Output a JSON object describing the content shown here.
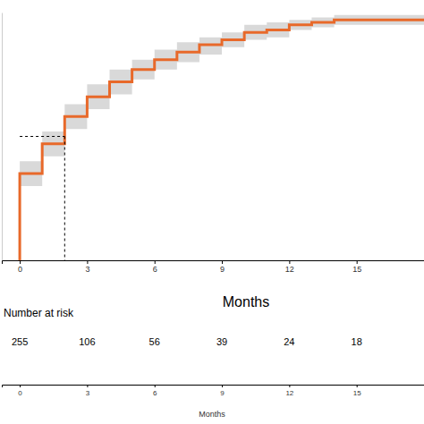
{
  "chart_data": {
    "type": "step",
    "xlabel": "Months",
    "xlim": [
      -0.8,
      18
    ],
    "xticks": [
      0,
      3,
      6,
      9,
      12,
      15
    ],
    "ylim": [
      0,
      1
    ],
    "tick_labels": "x",
    "grid": false,
    "series": [
      {
        "color": "#e8692a",
        "x": [
          0,
          0,
          1,
          2,
          3,
          4,
          5,
          6,
          7,
          8,
          9,
          10,
          11,
          12,
          13,
          14,
          18
        ],
        "values": [
          0,
          0.35,
          0.47,
          0.58,
          0.66,
          0.72,
          0.77,
          0.81,
          0.84,
          0.87,
          0.89,
          0.92,
          0.93,
          0.95,
          0.96,
          0.97,
          0.97
        ],
        "lower": [
          0,
          0.3,
          0.42,
          0.53,
          0.61,
          0.67,
          0.73,
          0.77,
          0.8,
          0.83,
          0.86,
          0.89,
          0.9,
          0.93,
          0.94,
          0.95,
          0.95
        ],
        "upper": [
          0,
          0.4,
          0.52,
          0.63,
          0.71,
          0.77,
          0.81,
          0.85,
          0.88,
          0.9,
          0.92,
          0.95,
          0.96,
          0.97,
          0.98,
          0.99,
          0.99
        ]
      }
    ],
    "median": {
      "x": 2,
      "y": 0.5
    },
    "risk_table": {
      "title": "Number at risk",
      "counts": [
        255,
        106,
        56,
        39,
        24,
        18
      ],
      "xticks": [
        0,
        3,
        6,
        9,
        12,
        15
      ],
      "xlabel": "Months"
    }
  }
}
